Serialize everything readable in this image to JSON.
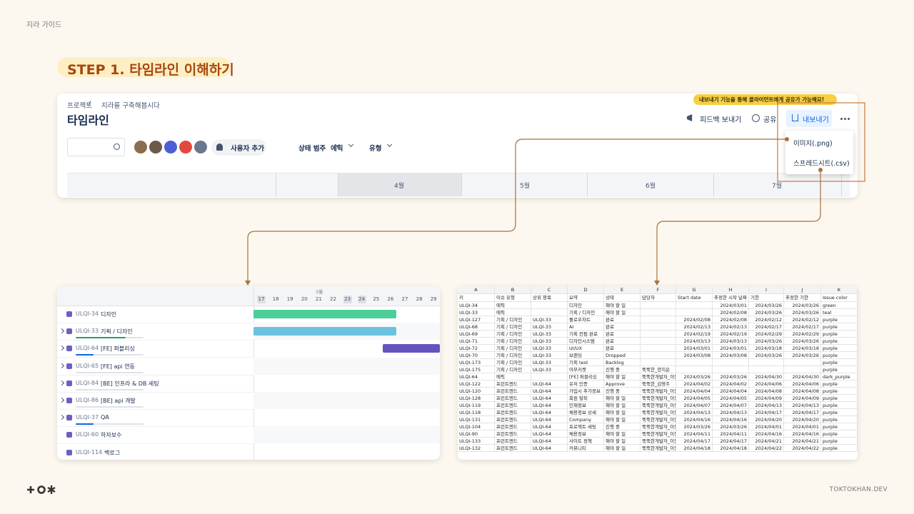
{
  "header": {
    "guide_label": "지라 가이드",
    "step_title": "STEP 1. 타임라인 이해하기"
  },
  "jira": {
    "breadcrumb": [
      "프로젝트",
      "/",
      "지라를 구축해봅시다"
    ],
    "title": "타임라인",
    "actions": [
      "피드백 보내기",
      "공유",
      "내보내기"
    ],
    "filters": [
      "사용자 추가",
      "상태 범주",
      "에픽",
      "유형"
    ],
    "months": [
      "4월",
      "5월",
      "6월",
      "7월"
    ],
    "tooltip": "내보내기 기능을 통해 클라이언트에게 공유가 가능해요!",
    "export_menu": [
      "이미지(.png)",
      "스프레드시트(.csv)"
    ]
  },
  "timeline": {
    "month": "3월",
    "days": [
      17,
      18,
      19,
      20,
      21,
      22,
      23,
      24,
      25,
      26,
      27,
      28,
      29
    ],
    "rows": [
      {
        "key": "ULQI-34",
        "title": "디자인"
      },
      {
        "key": "ULQI-33",
        "title": "기획 / 디자인"
      },
      {
        "key": "ULQI-64",
        "title": "[FE] 퍼블리싱"
      },
      {
        "key": "ULQI-65",
        "title": "[FE] api 연동"
      },
      {
        "key": "ULQI-84",
        "title": "[BE] 인프라 & DB 세팅"
      },
      {
        "key": "ULQI-86",
        "title": "[BE] api 개발"
      },
      {
        "key": "ULQI-37",
        "title": "QA"
      },
      {
        "key": "ULQI-60",
        "title": "하자보수"
      },
      {
        "key": "ULQI-114",
        "title": "백로그"
      }
    ]
  },
  "spreadsheet": {
    "columns": [
      "A",
      "B",
      "C",
      "D",
      "E",
      "F",
      "G",
      "H",
      "I",
      "J",
      "K"
    ],
    "header": [
      "키",
      "이슈 유형",
      "상위 항목",
      "요약",
      "상태",
      "담당자",
      "Start date",
      "추정한 시작 날짜",
      "기한",
      "추정한 기한",
      "Issue color"
    ],
    "rows": [
      [
        "ULQI-34",
        "에픽",
        null,
        "디자인",
        "해야 할 일",
        null,
        null,
        "2024/03/01",
        "2024/03/26",
        "2024/03/26",
        "green"
      ],
      [
        "ULQI-33",
        "에픽",
        null,
        "기획 / 디자인",
        "해야 할 일",
        null,
        null,
        "2024/02/08",
        "2024/03/26",
        "2024/03/26",
        "teal"
      ],
      [
        "ULQI-127",
        "기획 / 디자인",
        "ULQI-33",
        "플로우차트",
        "완료",
        null,
        "2024/02/08",
        "2024/02/08",
        "2024/02/12",
        "2024/02/12",
        "purple"
      ],
      [
        "ULQI-68",
        "기획 / 디자인",
        "ULQI-33",
        "AI",
        "완료",
        null,
        "2024/02/13",
        "2024/02/13",
        "2024/02/17",
        "2024/02/17",
        "purple"
      ],
      [
        "ULQI-69",
        "기획 / 디자인",
        "ULQI-33",
        "기획 컨펌 완료",
        "완료",
        null,
        "2024/02/19",
        "2024/02/19",
        "2024/02/29",
        "2024/02/29",
        "purple"
      ],
      [
        "ULQI-71",
        "기획 / 디자인",
        "ULQI-33",
        "디자인시스템",
        "완료",
        null,
        "2024/03/13",
        "2024/03/13",
        "2024/03/26",
        "2024/03/26",
        "purple"
      ],
      [
        "ULQI-72",
        "기획 / 디자인",
        "ULQI-33",
        "UI/UX",
        "완료",
        null,
        "2024/03/01",
        "2024/03/01",
        "2024/03/18",
        "2024/03/18",
        "purple"
      ],
      [
        "ULQI-70",
        "기획 / 디자인",
        "ULQI-33",
        "브랜딩",
        "Dropped",
        null,
        "2024/03/08",
        "2024/03/08",
        "2024/03/26",
        "2024/03/26",
        "purple"
      ],
      [
        "ULQI-173",
        "기획 / 디자인",
        "ULQI-33",
        "기획 test",
        "Backlog",
        null,
        null,
        null,
        null,
        null,
        "purple"
      ],
      [
        "ULQI-175",
        "기획 / 디자인",
        "ULQI-33",
        "아무키켓",
        "진행 중",
        "뚝뚝한_양지은",
        null,
        null,
        null,
        null,
        "purple"
      ],
      [
        "ULQI-64",
        "에픽",
        null,
        "[FE] 퍼블리싱",
        "해야 할 일",
        "뚝뚝한개발자_이동",
        "2024/03/26",
        "2024/03/26",
        "2024/04/30",
        "2024/04/30",
        "dark_purple"
      ],
      [
        "ULQI-122",
        "프런트엔드",
        "ULQI-64",
        "유저 인증",
        "Approve",
        "뚝뚝한_김영주",
        "2024/04/02",
        "2024/04/02",
        "2024/04/06",
        "2024/04/06",
        "purple"
      ],
      [
        "ULQI-120",
        "프런트엔드",
        "ULQI-64",
        "가입시 추가정보",
        "진행 중",
        "뚝뚝한개발자_이동",
        "2024/04/04",
        "2024/04/04",
        "2024/04/08",
        "2024/04/08",
        "purple"
      ],
      [
        "ULQI-128",
        "프런트엔드",
        "ULQI-64",
        "회원 탈퇴",
        "해야 할 일",
        "뚝뚝한개발자_이동",
        "2024/04/05",
        "2024/04/05",
        "2024/04/09",
        "2024/04/09",
        "purple"
      ],
      [
        "ULQI-119",
        "프런트엔드",
        "ULQI-64",
        "인재정보",
        "해야 할 일",
        "뚝뚝한개발자_이동",
        "2024/04/07",
        "2024/04/07",
        "2024/04/13",
        "2024/04/13",
        "purple"
      ],
      [
        "ULQI-118",
        "프런트엔드",
        "ULQI-64",
        "채용정보 상세",
        "해야 할 일",
        "뚝뚝한개발자_이동",
        "2024/04/13",
        "2024/04/13",
        "2024/04/17",
        "2024/04/17",
        "purple"
      ],
      [
        "ULQI-131",
        "프런트엔드",
        "ULQI-64",
        "Company",
        "해야 할 일",
        "뚝뚝한개발자_이동",
        "2024/04/16",
        "2024/04/16",
        "2024/04/20",
        "2024/04/20",
        "purple"
      ],
      [
        "ULQI-104",
        "프런트엔드",
        "ULQI-64",
        "프로젝트 세팅",
        "진행 중",
        "뚝뚝한개발자_이동",
        "2024/03/26",
        "2024/03/26",
        "2024/04/01",
        "2024/04/01",
        "purple"
      ],
      [
        "ULQI-90",
        "프런트엔드",
        "ULQI-64",
        "채용정보",
        "해야 할 일",
        "뚝뚝한개발자_이동",
        "2024/04/11",
        "2024/04/11",
        "2024/04/16",
        "2024/04/16",
        "purple"
      ],
      [
        "ULQI-133",
        "프런트엔드",
        "ULQI-64",
        "사이트 정책",
        "해야 할 일",
        "뚝뚝한개발자_이동",
        "2024/04/17",
        "2024/04/17",
        "2024/04/21",
        "2024/04/21",
        "purple"
      ],
      [
        "ULQI-132",
        "프런트엔드",
        "ULQI-64",
        "커뮤니티",
        "해야 할 일",
        "뚝뚝한개발자_이동",
        "2024/04/18",
        "2024/04/18",
        "2024/04/22",
        "2024/04/22",
        "purple"
      ]
    ]
  },
  "footer": {
    "site": "TOKTOKHAN.DEV"
  }
}
